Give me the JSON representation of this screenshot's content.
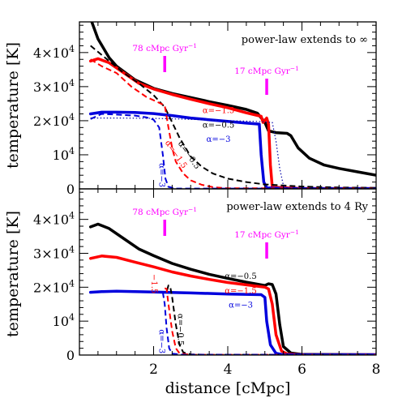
{
  "xlabel": "distance [cMpc]",
  "ylabel": "temperature [K]",
  "x_ticks": [
    "2",
    "4",
    "6",
    "8"
  ],
  "y_ticks": [
    {
      "base": "0",
      "exp": ""
    },
    {
      "base": "10",
      "exp": "4"
    },
    {
      "base": "2×10",
      "exp": "4"
    },
    {
      "base": "3×10",
      "exp": "4"
    },
    {
      "base": "4×10",
      "exp": "4"
    }
  ],
  "colors": {
    "black": "#000000",
    "red": "#ff0000",
    "blue": "#0000dd",
    "magenta": "#ff00ff",
    "dotted": "#0000aa"
  },
  "chart_data": [
    {
      "type": "line",
      "title": "power-law extends to ∞",
      "xlim": [
        0,
        8
      ],
      "ylim": [
        0,
        49000
      ],
      "markers": [
        {
          "x": 2.3,
          "text": "78 cMpc Gyr",
          "sup": "−1"
        },
        {
          "x": 5.05,
          "text": "17 cMpc Gyr",
          "sup": "−1"
        }
      ],
      "series": [
        {
          "name": "α=−0.5",
          "color": "#000000",
          "style": "solid",
          "width": 3.5,
          "points": [
            [
              0.3,
              50000
            ],
            [
              0.5,
              44000
            ],
            [
              0.8,
              38500
            ],
            [
              1,
              36000
            ],
            [
              1.5,
              32000
            ],
            [
              2,
              29500
            ],
            [
              2.5,
              28000
            ],
            [
              3,
              26800
            ],
            [
              3.5,
              25600
            ],
            [
              4,
              24500
            ],
            [
              4.5,
              23300
            ],
            [
              4.8,
              22200
            ],
            [
              5,
              19500
            ],
            [
              5.1,
              17000
            ],
            [
              5.3,
              16500
            ],
            [
              5.6,
              16300
            ],
            [
              5.7,
              15600
            ],
            [
              5.9,
              12000
            ],
            [
              6.2,
              9000
            ],
            [
              6.6,
              7000
            ],
            [
              7,
              6000
            ],
            [
              7.5,
              5000
            ],
            [
              8,
              4000
            ]
          ]
        },
        {
          "name": "α=−1.5",
          "color": "#ff0000",
          "style": "solid",
          "width": 3.5,
          "points": [
            [
              0.3,
              37500
            ],
            [
              0.5,
              38200
            ],
            [
              0.8,
              37000
            ],
            [
              1.2,
              34000
            ],
            [
              1.6,
              31000
            ],
            [
              2,
              29300
            ],
            [
              2.5,
              27700
            ],
            [
              3,
              26300
            ],
            [
              3.5,
              25000
            ],
            [
              4,
              23800
            ],
            [
              4.5,
              22300
            ],
            [
              4.9,
              21300
            ],
            [
              4.95,
              19500
            ],
            [
              5.05,
              20800
            ],
            [
              5.1,
              19000
            ],
            [
              5.15,
              7000
            ],
            [
              5.2,
              500
            ],
            [
              6,
              100
            ],
            [
              8,
              100
            ]
          ]
        },
        {
          "name": "α=−3",
          "color": "#0000dd",
          "style": "solid",
          "width": 3.5,
          "points": [
            [
              0.3,
              22000
            ],
            [
              0.6,
              22500
            ],
            [
              1,
              22500
            ],
            [
              1.5,
              22400
            ],
            [
              2,
              22100
            ],
            [
              2.5,
              21500
            ],
            [
              3,
              20800
            ],
            [
              3.5,
              20300
            ],
            [
              4,
              19800
            ],
            [
              4.5,
              19300
            ],
            [
              4.85,
              19000
            ],
            [
              4.9,
              10000
            ],
            [
              4.97,
              2000
            ],
            [
              5.05,
              300
            ],
            [
              5.5,
              100
            ],
            [
              8,
              100
            ]
          ]
        },
        {
          "name": "α=−0.5",
          "color": "#000000",
          "style": "dashed",
          "width": 2,
          "points": [
            [
              0.3,
              42000
            ],
            [
              0.8,
              37500
            ],
            [
              1.2,
              34000
            ],
            [
              1.6,
              31000
            ],
            [
              2,
              27500
            ],
            [
              2.3,
              24000
            ],
            [
              2.5,
              19500
            ],
            [
              2.7,
              15000
            ],
            [
              3,
              9500
            ],
            [
              3.3,
              6500
            ],
            [
              3.6,
              4500
            ],
            [
              4,
              3000
            ],
            [
              4.5,
              2000
            ],
            [
              5,
              1300
            ],
            [
              6,
              700
            ],
            [
              7,
              400
            ],
            [
              8,
              300
            ]
          ]
        },
        {
          "name": "α=−1.5",
          "color": "#ff0000",
          "style": "dashed",
          "width": 2,
          "points": [
            [
              0.3,
              38000
            ],
            [
              0.6,
              36000
            ],
            [
              1,
              34000
            ],
            [
              1.4,
              30000
            ],
            [
              1.8,
              27000
            ],
            [
              2.1,
              25500
            ],
            [
              2.3,
              24500
            ],
            [
              2.4,
              18000
            ],
            [
              2.5,
              12000
            ],
            [
              2.6,
              8000
            ],
            [
              2.8,
              4500
            ],
            [
              3,
              2500
            ],
            [
              3.3,
              1200
            ],
            [
              3.6,
              500
            ],
            [
              4,
              200
            ],
            [
              8,
              100
            ]
          ]
        },
        {
          "name": "α=−3",
          "color": "#0000dd",
          "style": "dashed",
          "width": 2,
          "points": [
            [
              0.3,
              20500
            ],
            [
              0.6,
              22000
            ],
            [
              1,
              21800
            ],
            [
              1.5,
              21500
            ],
            [
              1.8,
              21000
            ],
            [
              2,
              20300
            ],
            [
              2.15,
              18000
            ],
            [
              2.25,
              10000
            ],
            [
              2.32,
              3000
            ],
            [
              2.4,
              600
            ],
            [
              2.6,
              100
            ],
            [
              8,
              100
            ]
          ]
        },
        {
          "name": "",
          "color": "#0000aa",
          "style": "dotted",
          "width": 1.2,
          "points": [
            [
              0.3,
              20800
            ],
            [
              1,
              20800
            ],
            [
              2,
              20700
            ],
            [
              3,
              20400
            ],
            [
              4,
              20000
            ],
            [
              4.8,
              19800
            ],
            [
              5.2,
              19500
            ],
            [
              5.3,
              14000
            ],
            [
              5.4,
              6000
            ],
            [
              5.5,
              1000
            ],
            [
              5.6,
              200
            ],
            [
              8,
              100
            ]
          ]
        }
      ],
      "annotations": [
        {
          "text": "α=−1.5",
          "x": 3.75,
          "y": 22200,
          "color": "#ff0000",
          "rotate": 0
        },
        {
          "text": "α=−0.5",
          "x": 3.75,
          "y": 18000,
          "color": "#000000",
          "rotate": 0
        },
        {
          "text": "α=−3",
          "x": 3.75,
          "y": 13800,
          "color": "#0000dd",
          "rotate": 0
        },
        {
          "text": "α=−0.5",
          "x": 2.9,
          "y": 9500,
          "color": "#000000",
          "rotate": 55
        },
        {
          "text": "α=−1.5",
          "x": 2.55,
          "y": 9700,
          "color": "#ff0000",
          "rotate": 55
        },
        {
          "text": "α=−3",
          "x": 2.15,
          "y": 4000,
          "color": "#0000dd",
          "rotate": 90
        }
      ]
    },
    {
      "type": "line",
      "title": "power-law extends to 4 Ry",
      "xlim": [
        0,
        8
      ],
      "ylim": [
        0,
        49000
      ],
      "markers": [
        {
          "x": 2.3,
          "text": "78 cMpc Gyr",
          "sup": "−1"
        },
        {
          "x": 5.05,
          "text": "17 cMpc Gyr",
          "sup": "−1"
        }
      ],
      "series": [
        {
          "name": "α=−0.5",
          "color": "#000000",
          "style": "solid",
          "width": 3.5,
          "points": [
            [
              0.3,
              37800
            ],
            [
              0.5,
              38600
            ],
            [
              0.8,
              37300
            ],
            [
              1.2,
              34300
            ],
            [
              1.6,
              31300
            ],
            [
              2,
              29300
            ],
            [
              2.5,
              27000
            ],
            [
              3,
              25300
            ],
            [
              3.5,
              23800
            ],
            [
              4,
              22600
            ],
            [
              4.5,
              21500
            ],
            [
              5,
              20500
            ],
            [
              5.1,
              21000
            ],
            [
              5.2,
              20800
            ],
            [
              5.3,
              18000
            ],
            [
              5.4,
              9000
            ],
            [
              5.5,
              2500
            ],
            [
              5.7,
              600
            ],
            [
              6,
              200
            ],
            [
              8,
              100
            ]
          ]
        },
        {
          "name": "α=−1.5",
          "color": "#ff0000",
          "style": "solid",
          "width": 3.5,
          "points": [
            [
              0.3,
              28500
            ],
            [
              0.6,
              29200
            ],
            [
              1,
              28800
            ],
            [
              1.5,
              27400
            ],
            [
              2,
              26000
            ],
            [
              2.5,
              24500
            ],
            [
              3,
              23300
            ],
            [
              3.5,
              22300
            ],
            [
              4,
              21400
            ],
            [
              4.5,
              20700
            ],
            [
              5,
              20000
            ],
            [
              5.1,
              19500
            ],
            [
              5.2,
              15000
            ],
            [
              5.3,
              6000
            ],
            [
              5.45,
              1200
            ],
            [
              5.6,
              300
            ],
            [
              6,
              100
            ],
            [
              8,
              100
            ]
          ]
        },
        {
          "name": "α=−3",
          "color": "#0000dd",
          "style": "solid",
          "width": 3.5,
          "points": [
            [
              0.3,
              18500
            ],
            [
              0.6,
              18700
            ],
            [
              1,
              18800
            ],
            [
              2,
              18600
            ],
            [
              3,
              18300
            ],
            [
              4,
              18000
            ],
            [
              4.9,
              17800
            ],
            [
              5,
              17000
            ],
            [
              5.05,
              10000
            ],
            [
              5.15,
              3000
            ],
            [
              5.3,
              500
            ],
            [
              5.5,
              100
            ],
            [
              8,
              100
            ]
          ]
        },
        {
          "name": "α=−0.5",
          "color": "#000000",
          "style": "dashed",
          "width": 2,
          "points": [
            [
              2.36,
              19000
            ],
            [
              2.4,
              20500
            ],
            [
              2.45,
              20000
            ],
            [
              2.5,
              17000
            ],
            [
              2.6,
              9000
            ],
            [
              2.7,
              3000
            ],
            [
              2.8,
              800
            ],
            [
              3,
              200
            ],
            [
              3.5,
              100
            ],
            [
              8,
              100
            ]
          ]
        },
        {
          "name": "α=−1.5",
          "color": "#ff0000",
          "style": "dashed",
          "width": 2,
          "points": [
            [
              2.3,
              19700
            ],
            [
              2.35,
              19500
            ],
            [
              2.4,
              15000
            ],
            [
              2.5,
              7000
            ],
            [
              2.6,
              2000
            ],
            [
              2.7,
              500
            ],
            [
              3,
              100
            ],
            [
              8,
              100
            ]
          ]
        },
        {
          "name": "α=−3",
          "color": "#0000dd",
          "style": "dashed",
          "width": 2,
          "points": [
            [
              2.25,
              18500
            ],
            [
              2.3,
              15000
            ],
            [
              2.35,
              8000
            ],
            [
              2.42,
              2000
            ],
            [
              2.5,
              400
            ],
            [
              2.8,
              100
            ],
            [
              8,
              100
            ]
          ]
        }
      ],
      "annotations": [
        {
          "text": "α=−0.5",
          "x": 4.35,
          "y": 22500,
          "color": "#000000",
          "rotate": 0
        },
        {
          "text": "α=−1.5",
          "x": 4.35,
          "y": 18200,
          "color": "#ff0000",
          "rotate": 0
        },
        {
          "text": "α=−3",
          "x": 4.35,
          "y": 14000,
          "color": "#0000dd",
          "rotate": 0
        },
        {
          "text": "α=−0.5",
          "x": 2.65,
          "y": 7500,
          "color": "#000000",
          "rotate": 90
        },
        {
          "text": "−1.5",
          "x": 1.95,
          "y": 21000,
          "color": "#ff0000",
          "rotate": 90
        },
        {
          "text": "α=−3",
          "x": 2.15,
          "y": 4000,
          "color": "#0000dd",
          "rotate": 90
        }
      ]
    }
  ]
}
